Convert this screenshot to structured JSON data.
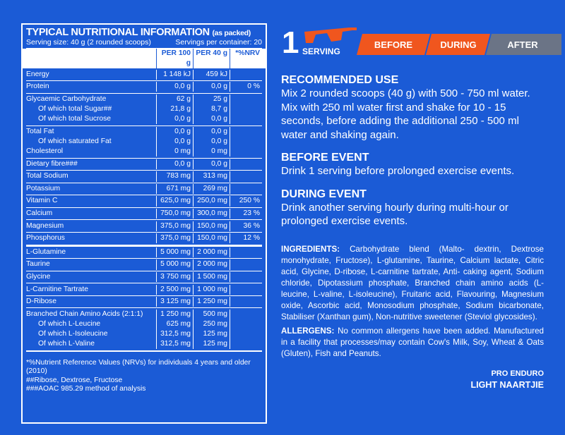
{
  "table": {
    "title": "TYPICAL NUTRITIONAL INFORMATION",
    "title_note": "(as packed)",
    "serving_size": "Serving size: 40 g (2 rounded scoops)",
    "servings_per_container": "Servings per container: 20",
    "columns": [
      "PER 100 g",
      "PER 40 g",
      "*%NRV"
    ],
    "groups": [
      [
        {
          "name": "Energy",
          "per100": "1 148 kJ",
          "per40": "459 kJ"
        }
      ],
      [
        {
          "name": "Protein",
          "per100": "0,0 g",
          "per40": "0,0 g",
          "nrv": "0 %"
        }
      ],
      [
        {
          "name": "Glycaemic Carbohydrate",
          "per100": "62 g",
          "per40": "25 g",
          "sub": [
            {
              "name": "Of which total Sugar##",
              "per100": "21,8 g",
              "per40": "8,7 g"
            },
            {
              "name": "Of which total Sucrose",
              "per100": "0,0 g",
              "per40": "0,0 g"
            }
          ]
        }
      ],
      [
        {
          "name": "Total Fat",
          "per100": "0,0 g",
          "per40": "0,0 g",
          "sub": [
            {
              "name": "Of which saturated Fat",
              "per100": "0,0 g",
              "per40": "0,0 g"
            }
          ]
        },
        {
          "name": "Cholesterol",
          "per100": "0 mg",
          "per40": "0 mg"
        }
      ],
      [
        {
          "name": "Dietary fibre###",
          "per100": "0,0 g",
          "per40": "0,0 g"
        }
      ],
      [
        {
          "name": "Total Sodium",
          "per100": "783 mg",
          "per40": "313 mg"
        }
      ],
      [
        {
          "name": "Potassium",
          "per100": "671 mg",
          "per40": "269 mg"
        }
      ],
      [
        {
          "name": "Vitamin C",
          "per100": "625,0 mg",
          "per40": "250,0 mg",
          "nrv": "250 %"
        }
      ],
      [
        {
          "name": "Calcium",
          "per100": "750,0 mg",
          "per40": "300,0 mg",
          "nrv": "23 %"
        }
      ],
      [
        {
          "name": "Magnesium",
          "per100": "375,0 mg",
          "per40": "150,0 mg",
          "nrv": "36 %"
        }
      ],
      [
        {
          "name": "Phosphorus",
          "per100": "375,0 mg",
          "per40": "150,0 mg",
          "nrv": "12 %"
        }
      ],
      [
        {
          "name": "L-Glutamine",
          "per100": "5 000 mg",
          "per40": "2 000 mg"
        }
      ],
      [
        {
          "name": "Taurine",
          "per100": "5 000 mg",
          "per40": "2 000 mg"
        }
      ],
      [
        {
          "name": "Glycine",
          "per100": "3 750 mg",
          "per40": "1 500 mg"
        }
      ],
      [
        {
          "name": "L-Carnitine Tartrate",
          "per100": "2 500 mg",
          "per40": "1 000 mg"
        }
      ],
      [
        {
          "name": "D-Ribose",
          "per100": "3 125 mg",
          "per40": "1 250 mg"
        }
      ],
      [
        {
          "name": "Branched Chain Amino Acids (2:1:1)",
          "per100": "1 250 mg",
          "per40": "500 mg",
          "sub": [
            {
              "name": "Of which L-Leucine",
              "per100": "625 mg",
              "per40": "250 mg"
            },
            {
              "name": "Of which L-Isoleucine",
              "per100": "312,5 mg",
              "per40": "125 mg"
            },
            {
              "name": "Of which L-Valine",
              "per100": "312,5 mg",
              "per40": "125 mg"
            }
          ]
        }
      ]
    ],
    "footnotes": [
      "*%Nutrient Reference Values (NRVs) for individuals 4 years and older (2010)",
      "##Ribose, Dextrose, Fructose",
      "###AOAC 985.29 method of analysis"
    ]
  },
  "serving": {
    "number": "1",
    "label": "SERVING",
    "tabs": [
      "BEFORE",
      "DURING",
      "AFTER"
    ]
  },
  "sections": [
    {
      "heading": "RECOMMENDED USE",
      "text": "Mix 2 rounded scoops (40 g) with 500 - 750 ml water. Mix with 250 ml water first and shake for 10 - 15 seconds, before adding the additional 250 - 500 ml water and shaking again."
    },
    {
      "heading": "BEFORE EVENT",
      "text": "Drink 1 serving before prolonged exercise events."
    },
    {
      "heading": "DURING EVENT",
      "text": "Drink another serving hourly during multi-hour or prolonged exercise events."
    }
  ],
  "ingredients": {
    "label": "INGREDIENTS:",
    "text": "Carbohydrate blend (Malto- dextrin, Dextrose monohydrate, Fructose), L-glutamine, Taurine, Calcium lactate, Citric acid, Glycine, D-ribose, L-carnitine tartrate, Anti- caking agent, Sodium chloride, Dipotassium phosphate, Branched chain amino acids (L-leucine, L-valine, L-isoleucine), Fruitaric acid, Flavouring, Magnesium oxide, Ascorbic acid, Monosodium phosphate, Sodium bicarbonate, Stabiliser (Xanthan gum), Non-nutritive sweetener (Steviol glycosides)."
  },
  "allergens": {
    "label": "ALLERGENS:",
    "text": "No common allergens have been added. Manufactured in a facility that processes/may contain Cow's Milk, Soy, Wheat & Oats (Gluten), Fish and Peanuts."
  },
  "product": {
    "line": "PRO ENDURO",
    "name": "LIGHT NAARTJIE"
  }
}
